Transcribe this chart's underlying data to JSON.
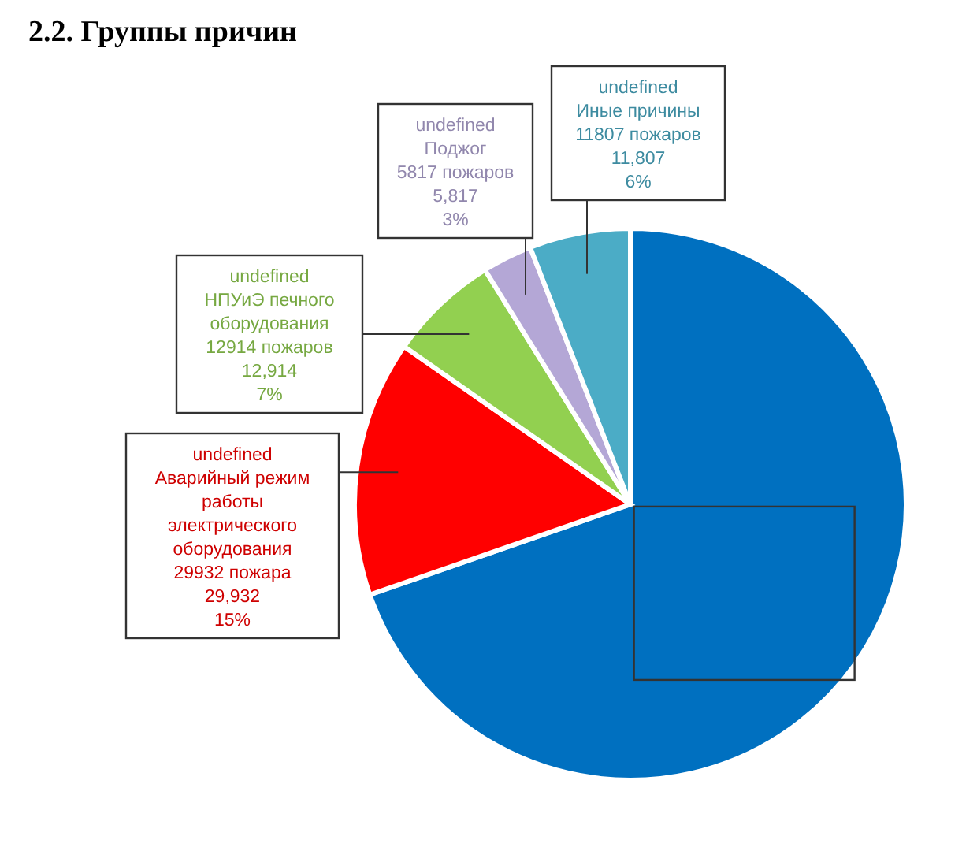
{
  "chart_data": {
    "type": "pie",
    "title": "2.2. Группы причин",
    "categories": [
      null,
      "undefined\nАварийный режим\nработы\nэлектрического\nоборудования\n29932  пожара",
      "undefined\nНПУиЭ печного\nоборудования\n12914  пожаров",
      "undefined\nПоджог\n5817 пожаров",
      "undefined\nИные причины\n11807  пожаров"
    ],
    "values": [
      139000,
      29932,
      12914,
      5817,
      11807
    ],
    "value_labels": [
      null,
      "29,932\n15%",
      "12,914\n7%",
      "5,817\n3%",
      "11,807\n6%"
    ],
    "colors": [
      "#0070c0",
      "#ff0000",
      "#92d050",
      "#b4a7d6",
      "#4bacc6"
    ]
  }
}
